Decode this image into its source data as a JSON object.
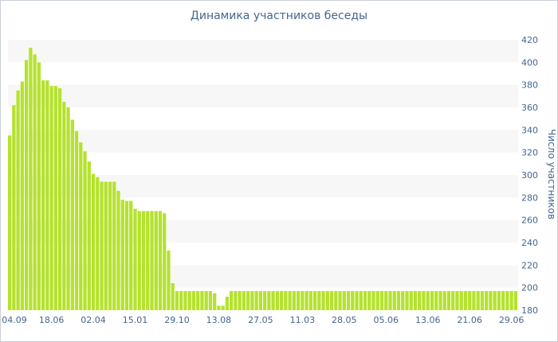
{
  "chart_data": {
    "type": "bar",
    "title": "Динамика участников беседы",
    "xlabel": "",
    "ylabel": "Число участников",
    "ylim": [
      180,
      420
    ],
    "yticks": [
      180,
      200,
      220,
      240,
      260,
      280,
      300,
      320,
      340,
      360,
      380,
      400,
      420
    ],
    "y_axis_side": "right",
    "grid": "alternating horizontal bands",
    "bar_color": "#b5e22e",
    "band_color": "#f7f7f7",
    "text_color": "#45668e",
    "xtick_labels": [
      {
        "label": "04.09",
        "bar": 0
      },
      {
        "label": "18.06",
        "bar": 10
      },
      {
        "label": "02.04",
        "bar": 20
      },
      {
        "label": "15.01",
        "bar": 30
      },
      {
        "label": "29.10",
        "bar": 40
      },
      {
        "label": "13.08",
        "bar": 50
      },
      {
        "label": "27.05",
        "bar": 60
      },
      {
        "label": "11.03",
        "bar": 70
      },
      {
        "label": "28.05",
        "bar": 80
      },
      {
        "label": "05.06",
        "bar": 90
      },
      {
        "label": "13.06",
        "bar": 100
      },
      {
        "label": "21.06",
        "bar": 110
      },
      {
        "label": "29.06",
        "bar": 120
      }
    ],
    "values": [
      335,
      362,
      375,
      383,
      402,
      413,
      407,
      400,
      384,
      384,
      379,
      379,
      377,
      365,
      360,
      349,
      339,
      329,
      321,
      312,
      301,
      298,
      294,
      294,
      294,
      294,
      286,
      278,
      277,
      277,
      270,
      268,
      268,
      268,
      268,
      268,
      268,
      266,
      233,
      204,
      197,
      197,
      197,
      197,
      197,
      197,
      197,
      197,
      197,
      195,
      184,
      184,
      192,
      197,
      197,
      197,
      197,
      197,
      197,
      197,
      197,
      197,
      197,
      197,
      197,
      197,
      197,
      197,
      197,
      197,
      197,
      197,
      197,
      197,
      197,
      197,
      197,
      197,
      197,
      197,
      197,
      197,
      197,
      197,
      197,
      197,
      197,
      197,
      197,
      197,
      197,
      197,
      197,
      197,
      197,
      197,
      197,
      197,
      197,
      197,
      197,
      197,
      197,
      197,
      197,
      197,
      197,
      197,
      197,
      197,
      197,
      197,
      197,
      197,
      197,
      197,
      197,
      197,
      197,
      197,
      197,
      197
    ]
  }
}
